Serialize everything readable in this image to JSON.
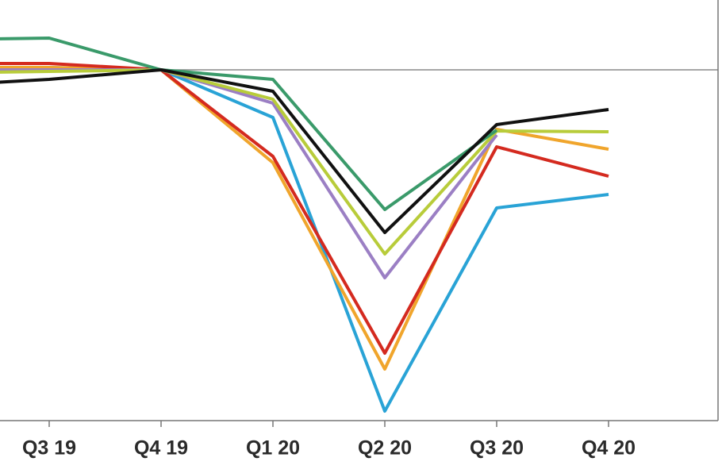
{
  "chart_data": {
    "type": "line",
    "categories": [
      null,
      "Q3 19",
      "Q4 19",
      "Q1 20",
      "Q2 20",
      "Q3 20",
      "Q4 20"
    ],
    "ylim": [
      77.9,
      104.4
    ],
    "reference_line": 100,
    "series": [
      {
        "color": "#29a3d6",
        "values": [
          100.15,
          100.15,
          100,
          97,
          78.5,
          91.3,
          92.15
        ]
      },
      {
        "color": "#f0a52c",
        "values": [
          100.15,
          100.15,
          100,
          94.15,
          81.15,
          96.25,
          95
        ]
      },
      {
        "color": "#d42a1f",
        "values": [
          100.4,
          100.4,
          100,
          94.55,
          82.15,
          95.15,
          93.3
        ]
      },
      {
        "color": "#9b7fc4",
        "values": [
          100,
          100,
          100,
          97.9,
          86.9,
          95.9,
          null
        ]
      },
      {
        "color": "#b8cc3a",
        "values": [
          99.8,
          99.9,
          100,
          98.15,
          88.4,
          96.15,
          96.1
        ]
      },
      {
        "color": "#3a9a6a",
        "values": [
          101.9,
          102,
          100,
          99.4,
          91.2,
          96.2,
          null
        ]
      },
      {
        "color": "#111111",
        "values": [
          99,
          99.4,
          100,
          98.65,
          89.75,
          96.55,
          97.5
        ]
      }
    ]
  }
}
